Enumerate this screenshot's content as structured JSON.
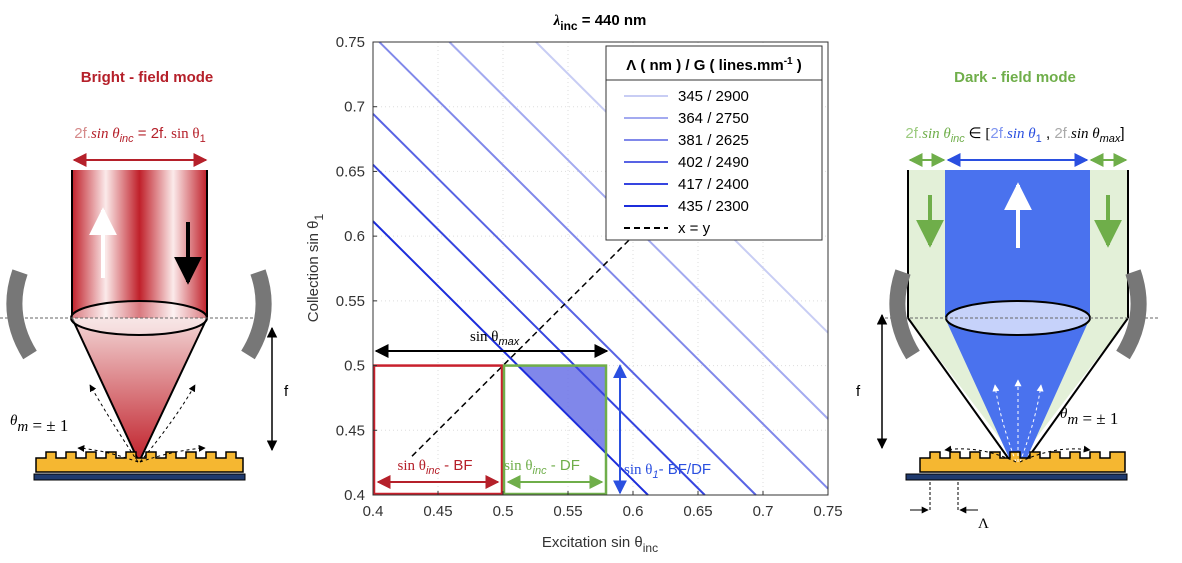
{
  "left": {
    "title": "Bright - field mode",
    "formula": {
      "a": "2f.",
      "b": "sin θ",
      "c": "inc",
      "d": " = 2f.",
      "e": " sin θ",
      "f": "1"
    },
    "order": {
      "a": "θ",
      "b": "m",
      "c": " = ± 1"
    },
    "focal": "f"
  },
  "right": {
    "title": "Dark - field mode",
    "formula": {
      "a": "2f.",
      "b": "sin θ",
      "c": "inc",
      "d": " ∈ [",
      "e": "2f.",
      "f": "sin θ",
      "g": "1",
      "h": " , ",
      "i": "2f.",
      "j": "sin θ",
      "k": "max",
      "l": "]"
    },
    "order": {
      "a": "θ",
      "b": "m",
      "c": " = ± 1"
    },
    "focal": "f",
    "period": "Λ"
  },
  "chart_data": {
    "type": "line",
    "title": {
      "main": "λ",
      "sub": "inc",
      "rest": " = 440 nm"
    },
    "x_label": {
      "main": "Excitation sin θ",
      "sub": "inc"
    },
    "y_label": {
      "main": "Collection sin θ",
      "sub": "1"
    },
    "xlim": [
      0.4,
      0.75
    ],
    "ylim": [
      0.4,
      0.75
    ],
    "xticks": [
      0.4,
      0.45,
      0.5,
      0.55,
      0.6,
      0.65,
      0.7,
      0.75
    ],
    "yticks": [
      0.4,
      0.45,
      0.5,
      0.55,
      0.6,
      0.65,
      0.7,
      0.75
    ],
    "grid": true,
    "legend": "upper right",
    "legend_title": {
      "main": "Λ ( nm ) / G ( lines.mm",
      "sup": "-1",
      "end": " )"
    },
    "series": [
      {
        "name": "345 / 2900",
        "color": "#c8cdf4",
        "x": [
          0.5254,
          0.75
        ],
        "values": [
          0.75,
          0.5254
        ]
      },
      {
        "name": "364 / 2750",
        "color": "#a3aaf0",
        "x": [
          0.4588,
          0.75
        ],
        "values": [
          0.75,
          0.4588
        ]
      },
      {
        "name": "381 / 2625",
        "color": "#8088ea",
        "x": [
          0.4049,
          0.75
        ],
        "values": [
          0.75,
          0.4049
        ]
      },
      {
        "name": "402 / 2490",
        "color": "#5863e4",
        "x": [
          0.4,
          0.6945
        ],
        "values": [
          0.6945,
          0.4
        ]
      },
      {
        "name": "417 / 2400",
        "color": "#3645e0",
        "x": [
          0.4,
          0.6552
        ],
        "values": [
          0.6552,
          0.4
        ]
      },
      {
        "name": "435 / 2300",
        "color": "#1c2ddb",
        "x": [
          0.4,
          0.6115
        ],
        "values": [
          0.6115,
          0.4
        ]
      },
      {
        "name": "x = y",
        "color": "#000000",
        "dashed": true,
        "x": [
          0.43,
          0.64
        ],
        "values": [
          0.43,
          0.64
        ]
      }
    ],
    "regions": [
      {
        "color": "#c8202c",
        "x": [
          0.4,
          0.5
        ],
        "y": [
          0.4,
          0.5
        ]
      },
      {
        "color": "#6fae4a",
        "x": [
          0.5,
          0.58
        ],
        "y": [
          0.4,
          0.5
        ]
      }
    ],
    "shaded": {
      "color": "#6a72e6",
      "x": [
        0.5115,
        0.58,
        0.58
      ],
      "y": [
        0.5,
        0.5,
        0.4315
      ]
    },
    "annotations": {
      "max": {
        "a": "sin θ",
        "b": "max"
      },
      "bf": {
        "a": "sin θ",
        "b": "inc",
        "c": " - BF"
      },
      "df": {
        "a": "sin θ",
        "b": "inc",
        "c": " - DF"
      },
      "bfdf": {
        "a": "sin θ",
        "b": "1",
        "c": "- BF/DF"
      }
    }
  }
}
